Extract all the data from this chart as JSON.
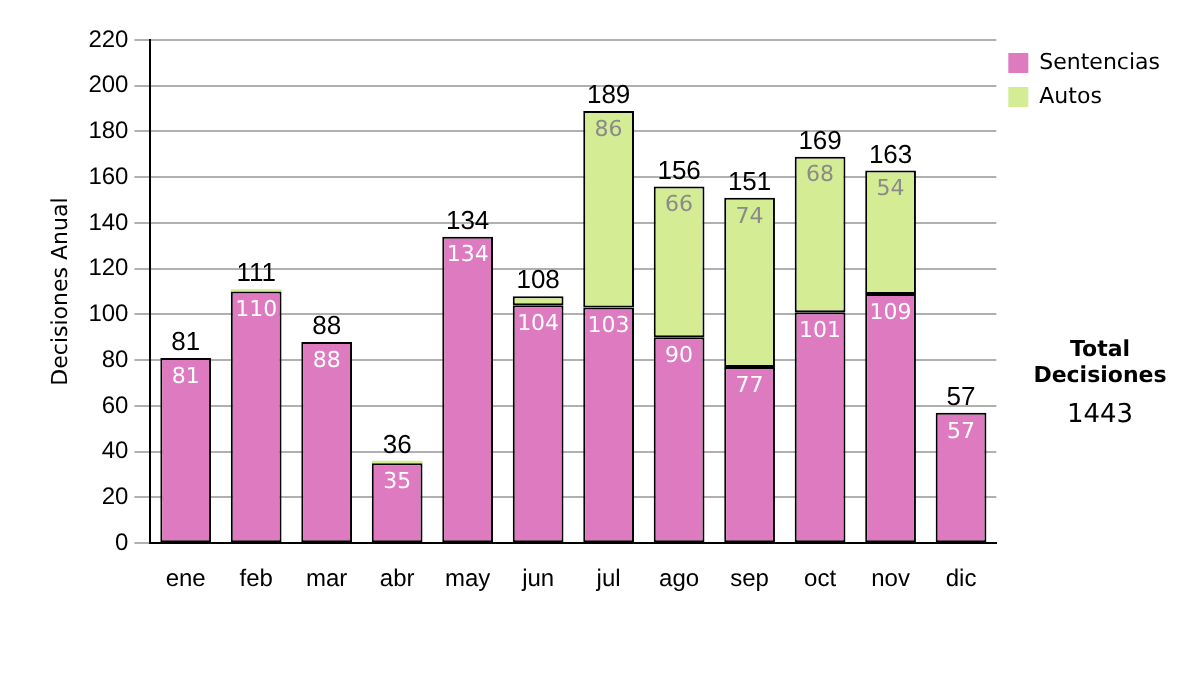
{
  "chart_data": {
    "type": "bar",
    "stacked": true,
    "ylabel": "Decisiones Anual",
    "categories": [
      "ene",
      "feb",
      "mar",
      "abr",
      "may",
      "jun",
      "jul",
      "ago",
      "sep",
      "oct",
      "nov",
      "dic"
    ],
    "series": [
      {
        "name": "Sentencias",
        "color": "#de7ac0",
        "values": [
          81,
          110,
          88,
          35,
          134,
          104,
          103,
          90,
          77,
          101,
          109,
          57
        ],
        "value_labels": [
          "81",
          "110",
          "88",
          "35",
          "134",
          "104",
          "103",
          "90",
          "77",
          "101",
          "109",
          "57"
        ]
      },
      {
        "name": "Autos",
        "color": "#d4ec94",
        "values": [
          0,
          1,
          0,
          1,
          0,
          4,
          86,
          66,
          74,
          68,
          54,
          0
        ],
        "value_labels": [
          null,
          null,
          null,
          null,
          null,
          null,
          "86",
          "66",
          "74",
          "68",
          "54",
          null
        ]
      }
    ],
    "totals": [
      "81",
      "111",
      "88",
      "36",
      "134",
      "108",
      "189",
      "156",
      "151",
      "169",
      "163",
      "57"
    ],
    "ylim": [
      0,
      220
    ],
    "yticks": [
      0,
      20,
      40,
      60,
      80,
      100,
      120,
      140,
      160,
      180,
      200,
      220
    ],
    "grid": "y",
    "legend": "right",
    "annotations": [
      "Total Decisiones",
      "1443"
    ]
  }
}
